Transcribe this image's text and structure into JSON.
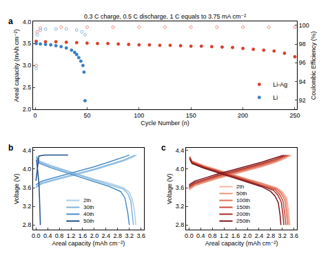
{
  "chart_data": [
    {
      "type": "scatter",
      "panel": "a",
      "title": "0.3 C charge, 0.5 C discharge, 1 C equals to 3.75 mA cm⁻²",
      "xlabel": "Cycle Number (n)",
      "ylabel": "Areal capacity (mAh cm⁻²)",
      "y2label": "Coulombic Efficiency (%)",
      "xlim": [
        -2,
        252
      ],
      "xticks": [
        0,
        50,
        100,
        150,
        200,
        250
      ],
      "ylim": [
        2.0,
        4.0
      ],
      "yticks": [
        {
          "value": 2.0,
          "label": "2.0"
        },
        2.5,
        {
          "value": 3.0,
          "label": "3.0"
        },
        3.5,
        {
          "value": 4.0,
          "label": "4.0"
        }
      ],
      "y2lim": [
        91,
        100.4
      ],
      "y2ticks": [
        92,
        94,
        96,
        98,
        100
      ],
      "legend": "lower right",
      "grid": false,
      "series": [
        {
          "name": "Li-Ag",
          "color": "#d9412b",
          "marker": "circle",
          "x": [
            1,
            10,
            20,
            30,
            40,
            50,
            60,
            70,
            80,
            90,
            100,
            110,
            120,
            130,
            140,
            150,
            160,
            170,
            180,
            190,
            200,
            210,
            220,
            230,
            240,
            250
          ],
          "values": [
            3.55,
            3.54,
            3.54,
            3.53,
            3.52,
            3.51,
            3.5,
            3.5,
            3.49,
            3.48,
            3.47,
            3.47,
            3.46,
            3.46,
            3.45,
            3.44,
            3.44,
            3.43,
            3.42,
            3.41,
            3.39,
            3.37,
            3.35,
            3.33,
            3.28,
            3.2
          ]
        },
        {
          "name": "Li",
          "color": "#3a7fc1",
          "marker": "circle",
          "x": [
            1,
            5,
            10,
            15,
            20,
            25,
            30,
            35,
            38,
            40,
            42,
            44,
            46,
            47,
            48
          ],
          "values": [
            3.5,
            3.49,
            3.48,
            3.47,
            3.45,
            3.43,
            3.4,
            3.35,
            3.3,
            3.25,
            3.18,
            3.1,
            3.0,
            2.85,
            2.2
          ]
        },
        {
          "name": "Li-Ag",
          "color": "#f08a80",
          "marker": "open circle",
          "axis": "y2",
          "x": [
            1,
            2,
            5,
            25,
            50,
            75,
            100,
            125,
            150,
            175,
            200,
            225,
            250
          ],
          "values": [
            95.7,
            99.3,
            99.7,
            99.8,
            99.8,
            99.8,
            99.8,
            99.8,
            99.8,
            99.8,
            99.8,
            99.8,
            99.8
          ]
        },
        {
          "name": "Li",
          "color": "#8ab4dc",
          "marker": "open circle",
          "axis": "y2",
          "x": [
            1,
            2,
            5,
            10,
            20,
            30,
            40,
            45,
            48
          ],
          "values": [
            95.4,
            99.0,
            99.5,
            99.6,
            99.6,
            99.6,
            99.5,
            99.3,
            99.0
          ]
        }
      ]
    },
    {
      "type": "line",
      "panel": "b",
      "xlabel": "Areal capacity (mAh cm⁻²)",
      "ylabel": "Voltage (V)",
      "xlim": [
        -0.1,
        3.7
      ],
      "xticks": [
        {
          "value": 0,
          "label": "0.0"
        },
        0.4,
        0.8,
        1.2,
        1.6,
        {
          "value": 2,
          "label": "2.0"
        },
        2.4,
        2.8,
        3.2,
        3.6
      ],
      "ylim": [
        2.7,
        4.45
      ],
      "yticks": [
        2.8,
        3.2,
        3.6,
        {
          "value": 4,
          "label": "4.0"
        },
        4.4
      ],
      "legend": "lower center",
      "grid": false,
      "series": [
        {
          "name": "2th",
          "color": "#a9cde8",
          "x": [
            0,
            0.2,
            0.6,
            1.0,
            1.5,
            2.0,
            2.5,
            3.0,
            3.3,
            3.45,
            null,
            0.02,
            0.1,
            0.5,
            1.0,
            1.5,
            2.0,
            2.5,
            3.0,
            3.2,
            3.3,
            3.38,
            3.42
          ],
          "values": [
            3.6,
            3.68,
            3.75,
            3.82,
            3.9,
            3.98,
            4.07,
            4.17,
            4.25,
            4.3,
            null,
            4.28,
            4.18,
            4.08,
            3.98,
            3.88,
            3.78,
            3.7,
            3.6,
            3.5,
            3.35,
            3.1,
            2.8
          ]
        },
        {
          "name": "30th",
          "color": "#7fb2dc",
          "x": [
            0,
            0.2,
            0.6,
            1.0,
            1.5,
            2.0,
            2.5,
            3.0,
            3.25,
            3.4,
            null,
            0.02,
            0.1,
            0.5,
            1.0,
            1.5,
            2.0,
            2.5,
            3.0,
            3.15,
            3.25,
            3.3,
            3.34
          ],
          "values": [
            3.62,
            3.7,
            3.77,
            3.84,
            3.92,
            4.0,
            4.09,
            4.19,
            4.26,
            4.3,
            null,
            4.27,
            4.16,
            4.06,
            3.96,
            3.86,
            3.76,
            3.67,
            3.57,
            3.47,
            3.32,
            3.05,
            2.8
          ]
        },
        {
          "name": "40th",
          "color": "#4a8cc6",
          "x": [
            0,
            0.2,
            0.6,
            1.0,
            1.5,
            2.0,
            2.5,
            2.9,
            3.1,
            3.2,
            null,
            0.02,
            0.1,
            0.5,
            1.0,
            1.5,
            2.0,
            2.5,
            2.9,
            3.05,
            3.15,
            3.2
          ],
          "values": [
            3.66,
            3.74,
            3.81,
            3.88,
            3.96,
            4.05,
            4.15,
            4.23,
            4.28,
            4.3,
            null,
            4.25,
            4.13,
            4.03,
            3.93,
            3.83,
            3.73,
            3.63,
            3.52,
            3.38,
            3.05,
            2.8
          ]
        },
        {
          "name": "50th",
          "color": "#1f4e8c",
          "x": [
            0,
            0.05,
            0.1,
            0.3,
            0.6,
            0.9,
            1.1,
            null,
            0.02,
            0.05,
            0.1,
            0.12,
            0.14,
            0.15
          ],
          "values": [
            3.75,
            4.0,
            4.28,
            4.3,
            4.3,
            4.3,
            4.3,
            null,
            4.2,
            4.0,
            3.7,
            3.4,
            3.0,
            2.8
          ]
        }
      ]
    },
    {
      "type": "line",
      "panel": "c",
      "xlabel": "Areal capacity (mAh cm⁻²)",
      "ylabel": "Voltage (V)",
      "xlim": [
        -0.1,
        3.7
      ],
      "xticks": [
        {
          "value": 0,
          "label": "0.0"
        },
        0.4,
        0.8,
        1.2,
        1.6,
        {
          "value": 2,
          "label": "2.0"
        },
        2.4,
        2.8,
        3.2,
        3.6
      ],
      "ylim": [
        2.7,
        4.45
      ],
      "yticks": [
        2.8,
        3.2,
        3.6,
        {
          "value": 4,
          "label": "4.0"
        },
        4.4
      ],
      "legend": "lower center",
      "grid": false,
      "series": [
        {
          "name": "2th",
          "color": "#f4b6a4",
          "x": [
            0,
            0.2,
            0.6,
            1.0,
            1.5,
            2.0,
            2.5,
            3.0,
            3.3,
            3.5,
            null,
            0.02,
            0.1,
            0.5,
            1.0,
            1.5,
            2.0,
            2.5,
            3.0,
            3.2,
            3.35,
            3.42,
            3.46
          ],
          "values": [
            3.55,
            3.64,
            3.72,
            3.8,
            3.88,
            3.96,
            4.05,
            4.15,
            4.23,
            4.3,
            null,
            4.28,
            4.18,
            4.08,
            3.98,
            3.88,
            3.79,
            3.7,
            3.6,
            3.52,
            3.38,
            3.1,
            2.8
          ]
        },
        {
          "name": "50th",
          "color": "#ec9478",
          "x": [
            0,
            0.2,
            0.6,
            1.0,
            1.5,
            2.0,
            2.5,
            3.0,
            3.3,
            3.46,
            null,
            0.02,
            0.1,
            0.5,
            1.0,
            1.5,
            2.0,
            2.5,
            3.0,
            3.18,
            3.32,
            3.38,
            3.42
          ],
          "values": [
            3.57,
            3.65,
            3.73,
            3.81,
            3.89,
            3.97,
            4.06,
            4.16,
            4.24,
            4.3,
            null,
            4.27,
            4.17,
            4.07,
            3.97,
            3.87,
            3.78,
            3.69,
            3.59,
            3.5,
            3.36,
            3.08,
            2.8
          ]
        },
        {
          "name": "100th",
          "color": "#e07058",
          "x": [
            0,
            0.2,
            0.6,
            1.0,
            1.5,
            2.0,
            2.5,
            3.0,
            3.28,
            3.42,
            null,
            0.02,
            0.1,
            0.5,
            1.0,
            1.5,
            2.0,
            2.5,
            3.0,
            3.15,
            3.28,
            3.34,
            3.38
          ],
          "values": [
            3.59,
            3.67,
            3.75,
            3.83,
            3.91,
            3.99,
            4.08,
            4.18,
            4.26,
            4.3,
            null,
            4.26,
            4.16,
            4.06,
            3.96,
            3.86,
            3.77,
            3.68,
            3.57,
            3.48,
            3.34,
            3.06,
            2.8
          ]
        },
        {
          "name": "150th",
          "color": "#c94a3a",
          "x": [
            0,
            0.2,
            0.6,
            1.0,
            1.5,
            2.0,
            2.5,
            3.0,
            3.22,
            3.38,
            null,
            0.02,
            0.1,
            0.5,
            1.0,
            1.5,
            2.0,
            2.5,
            2.95,
            3.1,
            3.22,
            3.28,
            3.32
          ],
          "values": [
            3.61,
            3.69,
            3.77,
            3.85,
            3.93,
            4.01,
            4.1,
            4.2,
            4.26,
            4.3,
            null,
            4.25,
            4.15,
            4.05,
            3.95,
            3.85,
            3.76,
            3.66,
            3.56,
            3.46,
            3.32,
            3.05,
            2.8
          ]
        },
        {
          "name": "200th",
          "color": "#a82a26",
          "x": [
            0,
            0.2,
            0.6,
            1.0,
            1.5,
            2.0,
            2.5,
            2.9,
            3.15,
            3.32,
            null,
            0.02,
            0.1,
            0.5,
            1.0,
            1.5,
            2.0,
            2.5,
            2.9,
            3.05,
            3.16,
            3.22,
            3.25
          ],
          "values": [
            3.63,
            3.71,
            3.79,
            3.87,
            3.95,
            4.03,
            4.12,
            4.2,
            4.26,
            4.3,
            null,
            4.24,
            4.14,
            4.04,
            3.94,
            3.84,
            3.74,
            3.64,
            3.54,
            3.44,
            3.3,
            3.03,
            2.8
          ]
        },
        {
          "name": "250th",
          "color": "#7a1418",
          "x": [
            0,
            0.2,
            0.6,
            1.0,
            1.5,
            2.0,
            2.5,
            2.85,
            3.08,
            3.25,
            null,
            0.02,
            0.1,
            0.5,
            1.0,
            1.5,
            2.0,
            2.5,
            2.8,
            2.95,
            3.06,
            3.12,
            3.15
          ],
          "values": [
            3.66,
            3.74,
            3.82,
            3.9,
            3.98,
            4.06,
            4.15,
            4.22,
            4.27,
            4.3,
            null,
            4.22,
            4.12,
            4.02,
            3.92,
            3.82,
            3.72,
            3.62,
            3.52,
            3.42,
            3.28,
            3.02,
            2.8
          ]
        }
      ]
    }
  ]
}
